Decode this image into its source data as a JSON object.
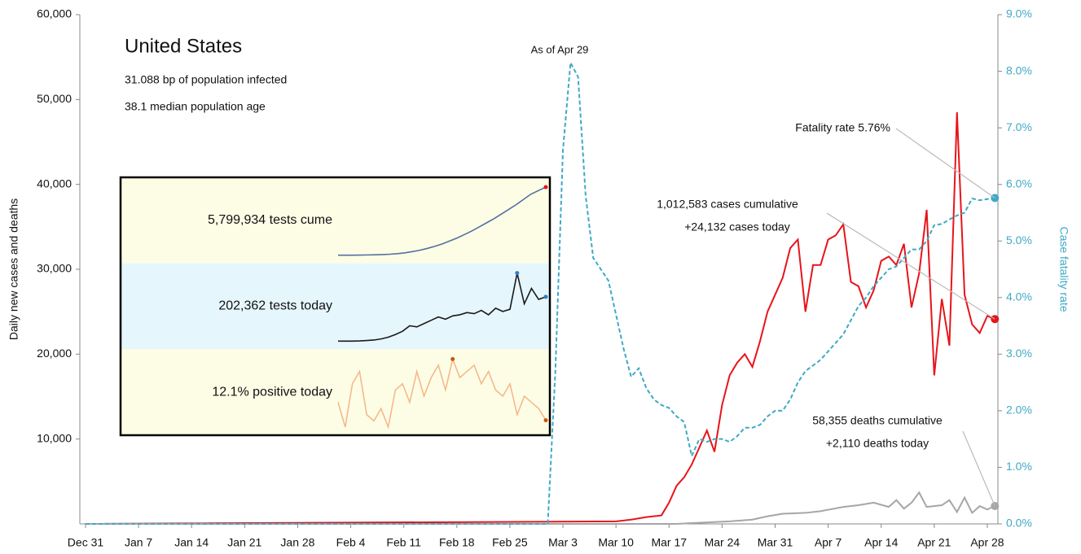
{
  "chart_data": {
    "type": "line",
    "title": "United States",
    "subtitle_lines": [
      "31.088 bp of population infected",
      "38.1 median population age"
    ],
    "ylabel": "Daily new cases and deaths",
    "y2label": "Case fatality rate",
    "xlim": [
      -0.75,
      120.4
    ],
    "xticks": [
      {
        "value": 0,
        "label": "Dec 31"
      },
      {
        "value": 7,
        "label": "Jan 7"
      },
      {
        "value": 14,
        "label": "Jan 14"
      },
      {
        "value": 21,
        "label": "Jan 21"
      },
      {
        "value": 28,
        "label": "Jan 28"
      },
      {
        "value": 35,
        "label": "Feb 4"
      },
      {
        "value": 42,
        "label": "Feb 11"
      },
      {
        "value": 49,
        "label": "Feb 18"
      },
      {
        "value": 56,
        "label": "Feb 25"
      },
      {
        "value": 63,
        "label": "Mar 3"
      },
      {
        "value": 70,
        "label": "Mar 10"
      },
      {
        "value": 77,
        "label": "Mar 17"
      },
      {
        "value": 84,
        "label": "Mar 24"
      },
      {
        "value": 91,
        "label": "Mar 31"
      },
      {
        "value": 98,
        "label": "Apr 7"
      },
      {
        "value": 105,
        "label": "Apr 14"
      },
      {
        "value": 112,
        "label": "Apr 21"
      },
      {
        "value": 119,
        "label": "Apr 28"
      }
    ],
    "ylim": [
      0,
      60000
    ],
    "yticks": [
      {
        "value": 10000,
        "label": "10,000"
      },
      {
        "value": 20000,
        "label": "20,000"
      },
      {
        "value": 30000,
        "label": "30,000"
      },
      {
        "value": 40000,
        "label": "40,000"
      },
      {
        "value": 50000,
        "label": "50,000"
      },
      {
        "value": 60000,
        "label": "60,000"
      }
    ],
    "y2lim": [
      0,
      9
    ],
    "y2ticks": [
      {
        "value": 0,
        "label": "0.0%"
      },
      {
        "value": 1,
        "label": "1.0%"
      },
      {
        "value": 2,
        "label": "2.0%"
      },
      {
        "value": 3,
        "label": "3.0%"
      },
      {
        "value": 4,
        "label": "4.0%"
      },
      {
        "value": 5,
        "label": "5.0%"
      },
      {
        "value": 6,
        "label": "6.0%"
      },
      {
        "value": 7,
        "label": "7.0%"
      },
      {
        "value": 8,
        "label": "8.0%"
      },
      {
        "value": 9,
        "label": "9.0%"
      }
    ],
    "series": [
      {
        "name": "Daily new cases",
        "color": "#e8141b",
        "x": [
          0,
          70,
          72,
          74,
          76,
          77,
          78,
          79,
          80,
          81,
          82,
          83,
          84,
          85,
          86,
          87,
          88,
          89,
          90,
          91,
          92,
          93,
          94,
          95,
          96,
          97,
          98,
          99,
          100,
          101,
          102,
          103,
          104,
          105,
          106,
          107,
          108,
          109,
          110,
          111,
          112,
          113,
          114,
          115,
          116,
          117,
          118,
          119,
          120
        ],
        "values": [
          0,
          300,
          500,
          800,
          1000,
          2500,
          4500,
          5500,
          7000,
          9000,
          11000,
          8500,
          14000,
          17500,
          19000,
          20000,
          18500,
          21500,
          25000,
          27000,
          29000,
          32500,
          33500,
          25000,
          30500,
          30500,
          33500,
          34000,
          35300,
          28500,
          28000,
          25500,
          27500,
          31000,
          31500,
          30500,
          33000,
          25500,
          29500,
          37000,
          17500,
          26500,
          21000,
          48500,
          27000,
          23500,
          22500,
          24500,
          24132
        ]
      },
      {
        "name": "Daily new deaths",
        "color": "#a6a6a6",
        "x": [
          0,
          78,
          80,
          85,
          88,
          90,
          92,
          95,
          97,
          100,
          102,
          104,
          106,
          107,
          108,
          109,
          110,
          111,
          113,
          114,
          115,
          116,
          117,
          118,
          119,
          120
        ],
        "values": [
          0,
          0,
          100,
          300,
          500,
          900,
          1200,
          1300,
          1500,
          2000,
          2200,
          2500,
          2000,
          2800,
          1800,
          2500,
          3700,
          2000,
          2200,
          2800,
          1400,
          3100,
          1300,
          2100,
          1700,
          2110
        ]
      },
      {
        "name": "Case fatality rate",
        "color": "#3fa9c6",
        "axis": "y2",
        "dashed": true,
        "x": [
          0,
          61,
          62,
          63,
          64,
          65,
          66,
          67,
          68,
          69,
          70,
          71,
          72,
          73,
          74,
          75,
          76,
          77,
          78,
          79,
          80,
          81,
          82,
          83,
          84,
          85,
          86,
          87,
          88,
          89,
          90,
          91,
          92,
          93,
          94,
          95,
          96,
          97,
          98,
          99,
          100,
          101,
          102,
          103,
          104,
          105,
          106,
          107,
          108,
          109,
          110,
          111,
          112,
          113,
          114,
          115,
          116,
          117,
          118,
          119,
          120
        ],
        "values": [
          0,
          0,
          2.7,
          6.6,
          8.15,
          7.9,
          5.8,
          4.7,
          4.5,
          4.3,
          3.7,
          3.1,
          2.6,
          2.75,
          2.4,
          2.2,
          2.1,
          2.05,
          1.9,
          1.8,
          1.2,
          1.5,
          1.45,
          1.5,
          1.5,
          1.45,
          1.55,
          1.7,
          1.7,
          1.75,
          1.9,
          2.0,
          2.0,
          2.2,
          2.5,
          2.7,
          2.8,
          2.9,
          3.05,
          3.2,
          3.35,
          3.6,
          3.85,
          4.0,
          4.2,
          4.35,
          4.5,
          4.55,
          4.7,
          4.85,
          4.85,
          5.0,
          5.28,
          5.3,
          5.38,
          5.45,
          5.5,
          5.75,
          5.72,
          5.74,
          5.76
        ]
      }
    ],
    "annotations": {
      "peak": "As of Apr 29",
      "fatality": "Fatality rate 5.76%",
      "cases": [
        "1,012,583 cases cumulative",
        "+24,132 cases today"
      ],
      "deaths": [
        "58,355 deaths cumulative",
        "+2,110 deaths today"
      ]
    },
    "inset": {
      "panels": [
        {
          "label": "5,799,934 tests cume",
          "color": "#5470a0",
          "band": "#fdfde6",
          "dot": "#e8141b",
          "values": [
            0,
            0,
            0,
            0.01,
            0.02,
            0.03,
            0.05,
            0.08,
            0.13,
            0.2,
            0.3,
            0.42,
            0.57,
            0.75,
            0.95,
            1.2,
            1.45,
            1.75,
            2.05,
            2.4,
            2.75,
            3.1,
            3.5,
            3.9,
            4.3,
            4.75,
            5.2,
            5.5,
            5.8
          ]
        },
        {
          "label": "202,362 tests today",
          "color": "#1a1a1a",
          "band": "#e6f6fd",
          "dot": "#2f7fc1",
          "values": [
            0,
            0,
            0,
            1,
            3,
            5,
            10,
            18,
            30,
            45,
            70,
            65,
            80,
            95,
            110,
            100,
            115,
            120,
            130,
            125,
            140,
            120,
            150,
            135,
            145,
            310,
            170,
            240,
            190,
            202
          ]
        },
        {
          "label": "12.1% positive today",
          "color": "#f6b98a",
          "band": "#fdfde6",
          "dot": "#c4580f",
          "values": [
            15,
            11,
            18,
            20,
            13,
            12,
            14,
            11,
            17,
            18,
            15,
            20,
            16,
            19,
            21,
            17,
            22,
            19,
            20,
            21,
            18,
            20,
            17,
            16,
            18,
            13,
            16,
            15,
            14,
            12.1
          ]
        }
      ]
    }
  }
}
